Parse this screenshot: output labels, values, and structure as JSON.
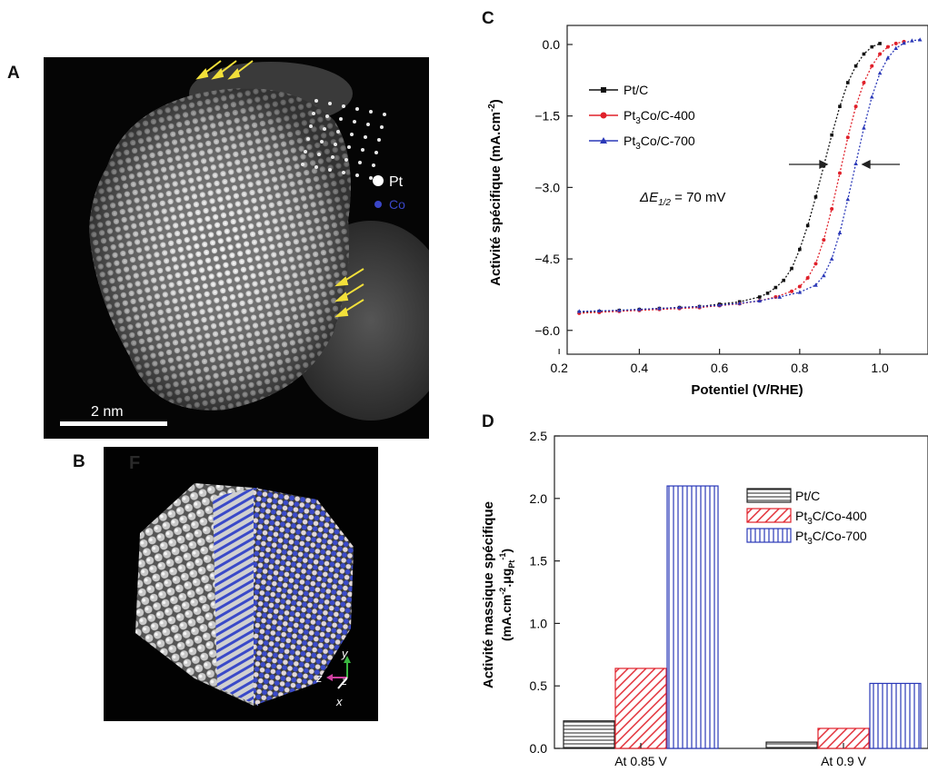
{
  "panel_labels": {
    "a": "A",
    "b": "B",
    "c": "C",
    "d": "D"
  },
  "panel_a": {
    "scale_bar": "2 nm",
    "legend": [
      {
        "label": "Pt",
        "color": "#ffffff"
      },
      {
        "label": "Co",
        "color": "#3a46c8"
      }
    ]
  },
  "panel_b": {
    "faint_label": "F",
    "axes": {
      "y": "y",
      "z1": "z",
      "z2": "z",
      "x": "x"
    }
  },
  "chart_data": [
    {
      "type": "line",
      "xlabel": "Potentiel (V/RHE)",
      "ylabel": "Activité spécifique (mA.cm⁻²)",
      "xlim": [
        0.22,
        1.12
      ],
      "ylim": [
        -6.5,
        0.4
      ],
      "xticks": [
        "0.2",
        "0.4",
        "0.6",
        "0.8",
        "1.0"
      ],
      "yticks": [
        "0.0",
        "-1.5",
        "-3.0",
        "-4.5",
        "-6.0"
      ],
      "annotation": "ΔE1/2 = 70 mV",
      "legend_position": "top-left",
      "series": [
        {
          "name": "Pt/C",
          "color": "#111111",
          "marker": "square",
          "x": [
            0.25,
            0.3,
            0.35,
            0.4,
            0.45,
            0.5,
            0.55,
            0.6,
            0.65,
            0.7,
            0.72,
            0.74,
            0.76,
            0.78,
            0.8,
            0.82,
            0.84,
            0.86,
            0.88,
            0.9,
            0.92,
            0.94,
            0.96,
            0.98,
            1.0
          ],
          "y": [
            -5.62,
            -5.6,
            -5.58,
            -5.56,
            -5.54,
            -5.52,
            -5.5,
            -5.45,
            -5.4,
            -5.3,
            -5.22,
            -5.1,
            -4.95,
            -4.7,
            -4.3,
            -3.8,
            -3.2,
            -2.55,
            -1.9,
            -1.3,
            -0.8,
            -0.45,
            -0.2,
            -0.05,
            0.02
          ]
        },
        {
          "name": "Pt3Co/C-400",
          "color": "#e0202a",
          "marker": "circle",
          "x": [
            0.25,
            0.3,
            0.35,
            0.4,
            0.45,
            0.5,
            0.55,
            0.6,
            0.65,
            0.7,
            0.74,
            0.78,
            0.8,
            0.82,
            0.84,
            0.86,
            0.88,
            0.9,
            0.92,
            0.94,
            0.96,
            0.98,
            1.0,
            1.02,
            1.04,
            1.06
          ],
          "y": [
            -5.64,
            -5.62,
            -5.6,
            -5.58,
            -5.56,
            -5.54,
            -5.52,
            -5.48,
            -5.44,
            -5.38,
            -5.3,
            -5.18,
            -5.08,
            -4.9,
            -4.6,
            -4.1,
            -3.45,
            -2.7,
            -1.95,
            -1.3,
            -0.8,
            -0.45,
            -0.2,
            -0.05,
            0.02,
            0.06
          ]
        },
        {
          "name": "Pt3Co/C-700",
          "color": "#2a38b8",
          "marker": "triangle",
          "x": [
            0.25,
            0.3,
            0.35,
            0.4,
            0.45,
            0.5,
            0.55,
            0.6,
            0.65,
            0.7,
            0.75,
            0.8,
            0.84,
            0.86,
            0.88,
            0.9,
            0.92,
            0.94,
            0.96,
            0.98,
            1.0,
            1.02,
            1.04,
            1.06,
            1.08,
            1.1
          ],
          "y": [
            -5.6,
            -5.59,
            -5.58,
            -5.56,
            -5.54,
            -5.52,
            -5.5,
            -5.47,
            -5.43,
            -5.38,
            -5.3,
            -5.2,
            -5.05,
            -4.85,
            -4.5,
            -3.95,
            -3.25,
            -2.5,
            -1.75,
            -1.1,
            -0.6,
            -0.28,
            -0.08,
            0.03,
            0.08,
            0.1
          ]
        }
      ]
    },
    {
      "type": "bar",
      "categories": [
        "At 0.85 V",
        "At 0.9 V"
      ],
      "ylabel_line1": "Activité massique spécifique",
      "ylabel_line2": "(mA.cm⁻².μgPt⁻¹)",
      "ylim": [
        0,
        2.5
      ],
      "yticks": [
        "0.0",
        "0.5",
        "1.0",
        "1.5",
        "2.0",
        "2.5"
      ],
      "legend_position": "top-right",
      "series": [
        {
          "name": "Pt/C",
          "color": "#222222",
          "pattern": "horizontal",
          "values": [
            0.22,
            0.05
          ]
        },
        {
          "name": "Pt3C/Co-400",
          "color": "#e0202a",
          "pattern": "diagonal",
          "values": [
            0.64,
            0.16
          ]
        },
        {
          "name": "Pt3C/Co-700",
          "color": "#2a38b8",
          "pattern": "vertical",
          "values": [
            2.1,
            0.52
          ]
        }
      ]
    }
  ]
}
